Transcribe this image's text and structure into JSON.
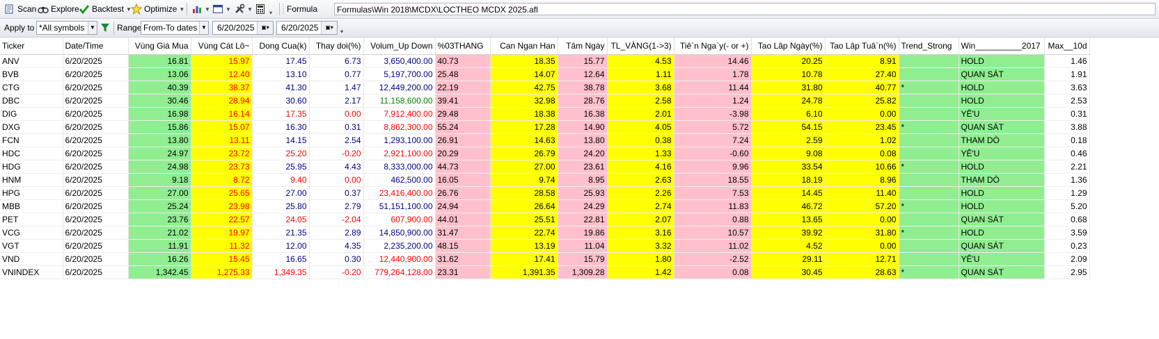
{
  "toolbar": {
    "scan": "Scan",
    "explore": "Explore",
    "backtest": "Backtest",
    "optimize": "Optimize",
    "formula_label": "Formula",
    "formula_path": "Formulas\\Win 2018\\MCDX\\LOCTHEO MCDX 2025.afl"
  },
  "filters": {
    "apply_to_label": "Apply to",
    "apply_to_value": "*All symbols",
    "range_label": "Range",
    "range_value": "From-To dates",
    "from_date": "6/20/2025",
    "to_date": "6/20/2025"
  },
  "columns": [
    "Ticker",
    "Date/Time",
    "Vùng Giá Mua",
    "Vùng Cát Lô~",
    "Dong Cua(k)",
    "Thay doi(%)",
    "Volum_Up Down",
    "%03THANG",
    "Can Ngan Han",
    "Tâm Ngày",
    "TL_VÀNG(1->3)",
    "Tiê`n Nga`y(- or +)",
    "Tao Lâp Ngày(%)",
    "Tao Lâp Tuâ`n(%)",
    "Trend_Strong",
    "Win__________2017",
    "Max__10d"
  ],
  "rows": [
    {
      "ticker": "ANV",
      "date": "6/20/2025",
      "mua": "16.81",
      "cat": "15.97",
      "dong": "17.45",
      "thay": "6.73",
      "vol": "3,650,400.00",
      "p3": "40.73",
      "can": "18.35",
      "tam": "15.77",
      "tl": "4.53",
      "tien": "14.46",
      "tlngay": "20.25",
      "tltuan": "8.91",
      "trend": "",
      "win": "HOLD",
      "max": "1.46",
      "dc": "navy",
      "tc": "navy",
      "vc": "navy"
    },
    {
      "ticker": "BVB",
      "date": "6/20/2025",
      "mua": "13.06",
      "cat": "12.40",
      "dong": "13.10",
      "thay": "0.77",
      "vol": "5,197,700.00",
      "p3": "25.48",
      "can": "14.07",
      "tam": "12.64",
      "tl": "1.11",
      "tien": "1.78",
      "tlngay": "10.78",
      "tltuan": "27.40",
      "trend": "",
      "win": "QUAN SÁT",
      "max": "1.91",
      "dc": "navy",
      "tc": "navy",
      "vc": "navy"
    },
    {
      "ticker": "CTG",
      "date": "6/20/2025",
      "mua": "40.39",
      "cat": "38.37",
      "dong": "41.30",
      "thay": "1.47",
      "vol": "12,449,200.00",
      "p3": "22.19",
      "can": "42.75",
      "tam": "38.78",
      "tl": "3.68",
      "tien": "11.44",
      "tlngay": "31.80",
      "tltuan": "40.77",
      "trend": "*",
      "win": "HOLD",
      "max": "3.63",
      "dc": "navy",
      "tc": "navy",
      "vc": "navy"
    },
    {
      "ticker": "DBC",
      "date": "6/20/2025",
      "mua": "30.46",
      "cat": "28.94",
      "dong": "30.60",
      "thay": "2.17",
      "vol": "11,158,600.00",
      "p3": "39.41",
      "can": "32.98",
      "tam": "28.76",
      "tl": "2.58",
      "tien": "1.24",
      "tlngay": "24.78",
      "tltuan": "25.82",
      "trend": "",
      "win": "HOLD",
      "max": "2.53",
      "dc": "navy",
      "tc": "navy",
      "vc": "grn"
    },
    {
      "ticker": "DIG",
      "date": "6/20/2025",
      "mua": "16.98",
      "cat": "16.14",
      "dong": "17.35",
      "thay": "0.00",
      "vol": "7,912,400.00",
      "p3": "29.48",
      "can": "18.38",
      "tam": "16.38",
      "tl": "2.01",
      "tien": "-3.98",
      "tlngay": "6.10",
      "tltuan": "0.00",
      "trend": "",
      "win": "YÊ'U",
      "max": "0.31",
      "dc": "red",
      "tc": "red",
      "vc": "red"
    },
    {
      "ticker": "DXG",
      "date": "6/20/2025",
      "mua": "15.86",
      "cat": "15.07",
      "dong": "16.30",
      "thay": "0.31",
      "vol": "8,862,300.00",
      "p3": "55.24",
      "can": "17.28",
      "tam": "14.90",
      "tl": "4.05",
      "tien": "5.72",
      "tlngay": "54.15",
      "tltuan": "23.45",
      "trend": "*",
      "win": "QUAN SÁT",
      "max": "3.88",
      "dc": "navy",
      "tc": "navy",
      "vc": "red"
    },
    {
      "ticker": "FCN",
      "date": "6/20/2025",
      "mua": "13.80",
      "cat": "13.11",
      "dong": "14.15",
      "thay": "2.54",
      "vol": "1,293,100.00",
      "p3": "26.91",
      "can": "14.63",
      "tam": "13.80",
      "tl": "0.38",
      "tien": "7.24",
      "tlngay": "2.59",
      "tltuan": "1.02",
      "trend": "",
      "win": "THAM DÒ",
      "max": "0.18",
      "dc": "navy",
      "tc": "navy",
      "vc": "navy"
    },
    {
      "ticker": "HDC",
      "date": "6/20/2025",
      "mua": "24.97",
      "cat": "23.72",
      "dong": "25.20",
      "thay": "-0.20",
      "vol": "2,921,100.00",
      "p3": "20.29",
      "can": "26.79",
      "tam": "24.20",
      "tl": "1.33",
      "tien": "-0.60",
      "tlngay": "9.08",
      "tltuan": "0.08",
      "trend": "",
      "win": "YÊ'U",
      "max": "0.46",
      "dc": "red",
      "tc": "red",
      "vc": "red"
    },
    {
      "ticker": "HDG",
      "date": "6/20/2025",
      "mua": "24.98",
      "cat": "23.73",
      "dong": "25.95",
      "thay": "4.43",
      "vol": "8,333,000.00",
      "p3": "44.73",
      "can": "27.00",
      "tam": "23.61",
      "tl": "4.16",
      "tien": "9.96",
      "tlngay": "33.54",
      "tltuan": "10.66",
      "trend": "*",
      "win": "HOLD",
      "max": "2.21",
      "dc": "navy",
      "tc": "navy",
      "vc": "navy"
    },
    {
      "ticker": "HNM",
      "date": "6/20/2025",
      "mua": "9.18",
      "cat": "8.72",
      "dong": "9.40",
      "thay": "0.00",
      "vol": "462,500.00",
      "p3": "16.05",
      "can": "9.74",
      "tam": "8.95",
      "tl": "2.63",
      "tien": "18.55",
      "tlngay": "18.19",
      "tltuan": "8.96",
      "trend": "",
      "win": "THAM DÒ",
      "max": "1.36",
      "dc": "red",
      "tc": "red",
      "vc": "navy"
    },
    {
      "ticker": "HPG",
      "date": "6/20/2025",
      "mua": "27.00",
      "cat": "25.65",
      "dong": "27.00",
      "thay": "0.37",
      "vol": "23,416,400.00",
      "p3": "26.76",
      "can": "28.58",
      "tam": "25.93",
      "tl": "2.26",
      "tien": "7.53",
      "tlngay": "14.45",
      "tltuan": "11.40",
      "trend": "",
      "win": "HOLD",
      "max": "1.29",
      "dc": "navy",
      "tc": "navy",
      "vc": "red"
    },
    {
      "ticker": "MBB",
      "date": "6/20/2025",
      "mua": "25.24",
      "cat": "23.98",
      "dong": "25.80",
      "thay": "2.79",
      "vol": "51,151,100.00",
      "p3": "24.94",
      "can": "26.64",
      "tam": "24.29",
      "tl": "2.74",
      "tien": "11.83",
      "tlngay": "46.72",
      "tltuan": "57.20",
      "trend": "*",
      "win": "HOLD",
      "max": "5.20",
      "dc": "navy",
      "tc": "navy",
      "vc": "navy"
    },
    {
      "ticker": "PET",
      "date": "6/20/2025",
      "mua": "23.76",
      "cat": "22.57",
      "dong": "24.05",
      "thay": "-2.04",
      "vol": "607,900.00",
      "p3": "44.01",
      "can": "25.51",
      "tam": "22.81",
      "tl": "2.07",
      "tien": "0.88",
      "tlngay": "13.65",
      "tltuan": "0.00",
      "trend": "",
      "win": "QUAN SÁT",
      "max": "0.68",
      "dc": "red",
      "tc": "red",
      "vc": "red"
    },
    {
      "ticker": "VCG",
      "date": "6/20/2025",
      "mua": "21.02",
      "cat": "19.97",
      "dong": "21.35",
      "thay": "2.89",
      "vol": "14,850,900.00",
      "p3": "31.47",
      "can": "22.74",
      "tam": "19.86",
      "tl": "3.16",
      "tien": "10.57",
      "tlngay": "39.92",
      "tltuan": "31.80",
      "trend": "*",
      "win": "HOLD",
      "max": "3.59",
      "dc": "navy",
      "tc": "navy",
      "vc": "navy"
    },
    {
      "ticker": "VGT",
      "date": "6/20/2025",
      "mua": "11.91",
      "cat": "11.32",
      "dong": "12.00",
      "thay": "4.35",
      "vol": "2,235,200.00",
      "p3": "48.15",
      "can": "13.19",
      "tam": "11.04",
      "tl": "3.32",
      "tien": "11.02",
      "tlngay": "4.52",
      "tltuan": "0.00",
      "trend": "",
      "win": "QUAN SÁT",
      "max": "0.23",
      "dc": "navy",
      "tc": "navy",
      "vc": "navy"
    },
    {
      "ticker": "VND",
      "date": "6/20/2025",
      "mua": "16.26",
      "cat": "15.45",
      "dong": "16.65",
      "thay": "0.30",
      "vol": "12,440,900.00",
      "p3": "31.62",
      "can": "17.41",
      "tam": "15.79",
      "tl": "1.80",
      "tien": "-2.52",
      "tlngay": "29.11",
      "tltuan": "12.71",
      "trend": "",
      "win": "YÊ'U",
      "max": "2.09",
      "dc": "navy",
      "tc": "navy",
      "vc": "red"
    },
    {
      "ticker": "VNINDEX",
      "date": "6/20/2025",
      "mua": "1,342.45",
      "cat": "1,275.33",
      "dong": "1,349.35",
      "thay": "-0.20",
      "vol": "779,264,128.00",
      "p3": "23.31",
      "can": "1,391.35",
      "tam": "1,309.28",
      "tl": "1.42",
      "tien": "0.08",
      "tlngay": "30.45",
      "tltuan": "28.63",
      "trend": "*",
      "win": "QUAN SÁT",
      "max": "2.95",
      "dc": "red",
      "tc": "red",
      "vc": "red"
    }
  ]
}
